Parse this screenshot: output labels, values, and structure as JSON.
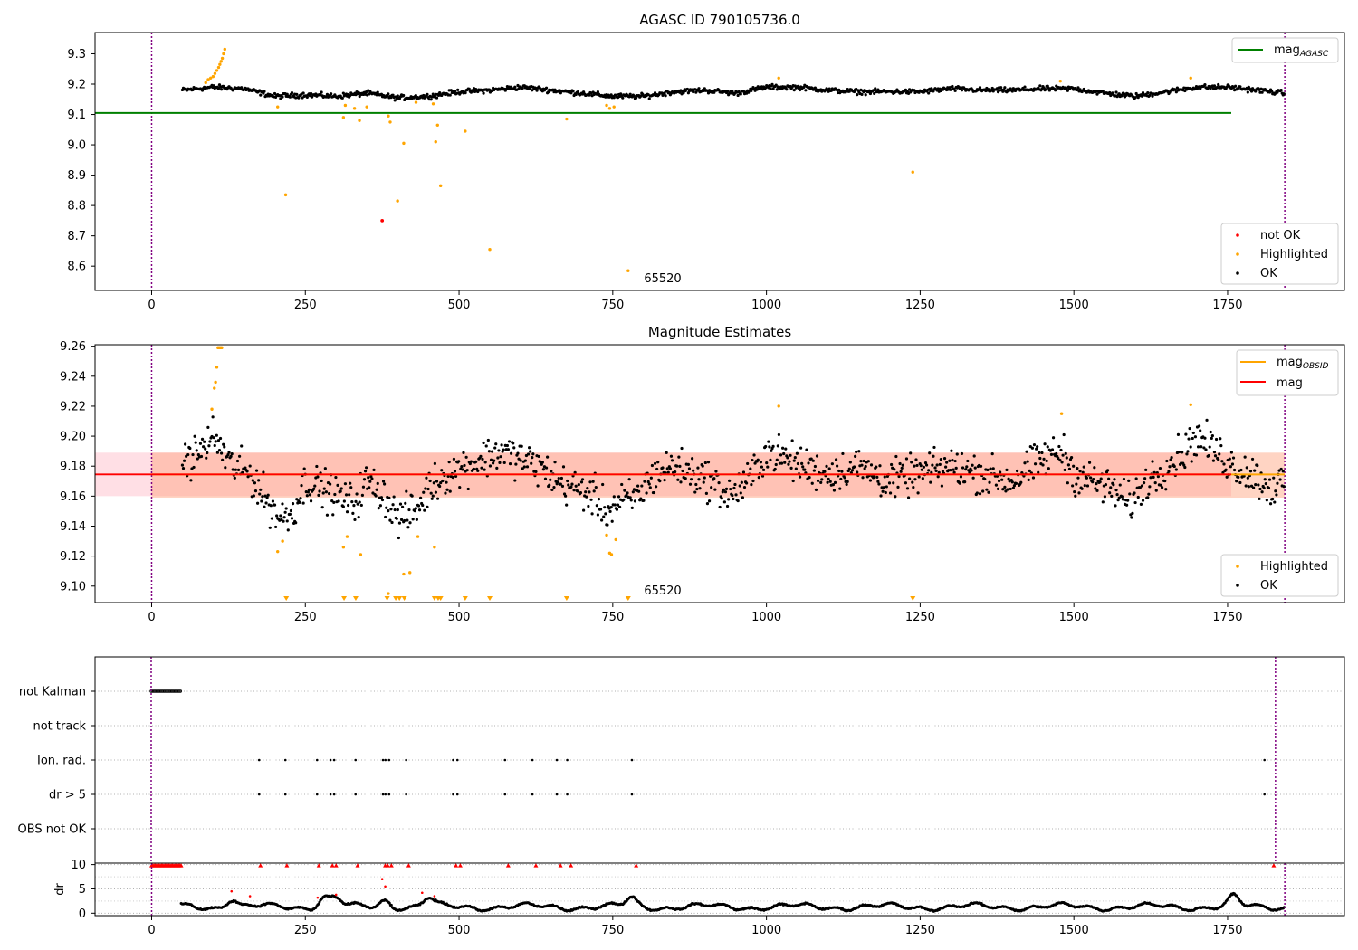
{
  "colors": {
    "ok": "#000000",
    "highlighted": "#ffa500",
    "not_ok": "#ff0000",
    "agasc_line": "#008000",
    "mag_line": "#ff0000",
    "obsid_line": "#ffa500",
    "band_mag": "#ffc0cb",
    "band_obsid": "#ffa07a",
    "vline": "#800080",
    "grid": "#b0b0b0"
  },
  "chart_data": [
    {
      "type": "scatter",
      "title": "AGASC ID 790105736.0",
      "xlabel": "",
      "ylabel": "",
      "xlim": [
        -92,
        1940
      ],
      "ylim": [
        8.52,
        9.37
      ],
      "xticks": [
        0,
        250,
        500,
        750,
        1000,
        1250,
        1500,
        1750,
        2000
      ],
      "yticks": [
        8.6,
        8.7,
        8.8,
        8.9,
        9.0,
        9.1,
        9.2,
        9.3
      ],
      "ytick_labels": [
        "8.6",
        "8.7",
        "8.8",
        "8.9",
        "9.0",
        "9.1",
        "9.2",
        "9.3"
      ],
      "vlines": [
        0,
        1843
      ],
      "obsid_label": {
        "text": "65520",
        "x": 920,
        "y": 8.55
      },
      "legend_lines": [
        {
          "label": "mag",
          "sub": "AGASC",
          "color_key": "agasc_line",
          "position": "top-right"
        }
      ],
      "legend_points": [
        {
          "label": "not OK",
          "color_key": "not_ok"
        },
        {
          "label": "Highlighted",
          "color_key": "highlighted"
        },
        {
          "label": "OK",
          "color_key": "ok"
        }
      ],
      "legend_points_position": "bottom-right",
      "hline": {
        "name": "mag_AGASC",
        "y": 9.105,
        "x0": -92,
        "x1": 1940
      },
      "ok_series": {
        "x_range": [
          50,
          1843
        ],
        "profile_x": [
          50,
          100,
          150,
          200,
          250,
          300,
          350,
          400,
          450,
          500,
          550,
          600,
          650,
          700,
          750,
          800,
          850,
          900,
          950,
          1000,
          1050,
          1100,
          1150,
          1200,
          1250,
          1300,
          1350,
          1400,
          1450,
          1500,
          1550,
          1600,
          1650,
          1700,
          1750,
          1800,
          1843
        ],
        "profile_y": [
          9.18,
          9.19,
          9.185,
          9.16,
          9.165,
          9.16,
          9.17,
          9.155,
          9.16,
          9.175,
          9.18,
          9.19,
          9.18,
          9.17,
          9.16,
          9.16,
          9.175,
          9.18,
          9.17,
          9.19,
          9.19,
          9.18,
          9.175,
          9.175,
          9.175,
          9.185,
          9.18,
          9.18,
          9.185,
          9.185,
          9.17,
          9.16,
          9.175,
          9.19,
          9.19,
          9.18,
          9.17
        ],
        "scatter": 0.007
      },
      "highlighted_points": [
        [
          88,
          9.205
        ],
        [
          92,
          9.215
        ],
        [
          96,
          9.22
        ],
        [
          100,
          9.225
        ],
        [
          103,
          9.235
        ],
        [
          106,
          9.245
        ],
        [
          109,
          9.255
        ],
        [
          111,
          9.265
        ],
        [
          113,
          9.275
        ],
        [
          115,
          9.285
        ],
        [
          117,
          9.3
        ],
        [
          119,
          9.315
        ],
        [
          205,
          9.125
        ],
        [
          218,
          8.835
        ],
        [
          312,
          9.09
        ],
        [
          315,
          9.13
        ],
        [
          330,
          9.12
        ],
        [
          338,
          9.08
        ],
        [
          350,
          9.125
        ],
        [
          385,
          9.095
        ],
        [
          388,
          9.075
        ],
        [
          400,
          8.815
        ],
        [
          410,
          9.005
        ],
        [
          430,
          9.14
        ],
        [
          458,
          9.135
        ],
        [
          462,
          9.01
        ],
        [
          465,
          9.065
        ],
        [
          470,
          8.865
        ],
        [
          510,
          9.045
        ],
        [
          550,
          8.655
        ],
        [
          675,
          9.085
        ],
        [
          740,
          9.13
        ],
        [
          745,
          9.12
        ],
        [
          752,
          9.125
        ],
        [
          775,
          8.585
        ],
        [
          1020,
          9.22
        ],
        [
          1238,
          8.91
        ],
        [
          1478,
          9.21
        ],
        [
          1690,
          9.22
        ]
      ],
      "not_ok_points": [
        [
          375,
          8.75
        ]
      ]
    },
    {
      "type": "scatter",
      "title": "Magnitude Estimates",
      "xlabel": "",
      "ylabel": "",
      "xlim": [
        -92,
        1940
      ],
      "ylim": [
        9.089,
        9.261
      ],
      "xticks": [
        0,
        250,
        500,
        750,
        1000,
        1250,
        1500,
        1750,
        2000
      ],
      "yticks": [
        9.1,
        9.12,
        9.14,
        9.16,
        9.18,
        9.2,
        9.22,
        9.24,
        9.26
      ],
      "ytick_labels": [
        "9.10",
        "9.12",
        "9.14",
        "9.16",
        "9.18",
        "9.20",
        "9.22",
        "9.24",
        "9.26"
      ],
      "vlines": [
        0,
        1843
      ],
      "obsid_label": {
        "text": "65520",
        "x": 920,
        "y": 9.095
      },
      "legend_lines": [
        {
          "label": "mag",
          "sub": "OBSID",
          "color_key": "obsid_line"
        },
        {
          "label": "mag",
          "sub": "",
          "color_key": "mag_line"
        }
      ],
      "legend_lines_position": "top-right",
      "legend_points": [
        {
          "label": "Highlighted",
          "color_key": "highlighted"
        },
        {
          "label": "OK",
          "color_key": "ok"
        }
      ],
      "legend_points_position": "bottom-right",
      "mag": {
        "y": 9.1745,
        "band": [
          9.16,
          9.189
        ],
        "x0": -92,
        "x1": 1940
      },
      "mag_obsid": {
        "y": 9.1745,
        "band": [
          9.159,
          9.189
        ],
        "x0": 0,
        "x1": 1843
      },
      "ok_series": {
        "x_range": [
          50,
          1843
        ],
        "profile_x": [
          50,
          80,
          100,
          130,
          160,
          190,
          210,
          230,
          250,
          280,
          300,
          330,
          350,
          380,
          400,
          430,
          450,
          480,
          510,
          540,
          570,
          600,
          630,
          660,
          690,
          720,
          740,
          760,
          790,
          820,
          850,
          880,
          910,
          940,
          970,
          1000,
          1030,
          1060,
          1100,
          1150,
          1200,
          1250,
          1300,
          1350,
          1400,
          1450,
          1480,
          1500,
          1530,
          1560,
          1590,
          1620,
          1650,
          1680,
          1700,
          1730,
          1760,
          1790,
          1820,
          1843
        ],
        "profile_y": [
          9.182,
          9.19,
          9.2,
          9.18,
          9.175,
          9.155,
          9.145,
          9.15,
          9.17,
          9.165,
          9.16,
          9.155,
          9.17,
          9.16,
          9.145,
          9.15,
          9.165,
          9.175,
          9.18,
          9.185,
          9.19,
          9.185,
          9.18,
          9.17,
          9.165,
          9.16,
          9.15,
          9.155,
          9.16,
          9.175,
          9.18,
          9.175,
          9.17,
          9.16,
          9.17,
          9.19,
          9.185,
          9.18,
          9.175,
          9.18,
          9.17,
          9.175,
          9.18,
          9.175,
          9.17,
          9.185,
          9.19,
          9.175,
          9.17,
          9.165,
          9.155,
          9.17,
          9.18,
          9.19,
          9.2,
          9.19,
          9.18,
          9.175,
          9.165,
          9.17
        ],
        "scatter": 0.011
      },
      "highlighted_points": [
        [
          98,
          9.218
        ],
        [
          102,
          9.232
        ],
        [
          104,
          9.236
        ],
        [
          106,
          9.246
        ],
        [
          108,
          9.259
        ],
        [
          110,
          9.259
        ],
        [
          112,
          9.259
        ],
        [
          114,
          9.259
        ],
        [
          205,
          9.123
        ],
        [
          213,
          9.13
        ],
        [
          312,
          9.126
        ],
        [
          318,
          9.133
        ],
        [
          340,
          9.121
        ],
        [
          385,
          9.095
        ],
        [
          410,
          9.108
        ],
        [
          420,
          9.109
        ],
        [
          433,
          9.133
        ],
        [
          460,
          9.126
        ],
        [
          740,
          9.134
        ],
        [
          745,
          9.122
        ],
        [
          748,
          9.121
        ],
        [
          755,
          9.131
        ],
        [
          1020,
          9.22
        ],
        [
          1480,
          9.215
        ],
        [
          1690,
          9.221
        ]
      ],
      "clipped_low_markers": [
        219,
        313,
        332,
        383,
        397,
        403,
        411,
        460,
        466,
        470,
        510,
        550,
        675,
        775,
        1238
      ]
    },
    {
      "type": "scatter",
      "title": "",
      "xlabel": "",
      "ylabel": "",
      "xlim": [
        -92,
        1956
      ],
      "ylim": [
        0,
        1
      ],
      "xticks": [],
      "categories": [
        "not Kalman",
        "not track",
        "Ion. rad.",
        "dr > 5",
        "OBS not OK"
      ],
      "vlines": [
        0,
        1843
      ],
      "flags": {
        "not Kalman": {
          "x_range": [
            0,
            48
          ],
          "step": 2
        },
        "not track": {
          "points": []
        },
        "Ion. rad.": {
          "points": [
            177,
            220,
            272,
            294,
            300,
            335,
            380,
            384,
            390,
            418,
            495,
            502,
            580,
            625,
            665,
            682,
            788,
            1825
          ]
        },
        "dr > 5": {
          "points": [
            177,
            220,
            272,
            294,
            300,
            335,
            380,
            384,
            390,
            418,
            495,
            502,
            580,
            625,
            665,
            682,
            788,
            1825
          ]
        },
        "OBS not OK": {
          "points": []
        }
      }
    },
    {
      "type": "scatter",
      "title": "",
      "xlabel": "",
      "ylabel": "dr",
      "xlim": [
        -92,
        1940
      ],
      "ylim": [
        -0.5,
        10.3
      ],
      "xticks": [
        0,
        250,
        500,
        750,
        1000,
        1250,
        1500,
        1750,
        2000
      ],
      "yticks": [
        0,
        5,
        10
      ],
      "ytick_labels": [
        "0",
        "5",
        "10"
      ],
      "vlines": [
        0,
        1843
      ],
      "capped_markers": {
        "y": 9.8,
        "x_range": [
          0,
          48
        ],
        "step": 2,
        "points": [
          177,
          220,
          272,
          294,
          300,
          335,
          380,
          384,
          390,
          418,
          495,
          502,
          580,
          625,
          665,
          682,
          788,
          1825
        ]
      },
      "red_points": [
        [
          130,
          4.5
        ],
        [
          160,
          3.5
        ],
        [
          270,
          3.2
        ],
        [
          300,
          3.8
        ],
        [
          375,
          7.0
        ],
        [
          380,
          5.5
        ],
        [
          440,
          4.2
        ],
        [
          460,
          3.5
        ]
      ],
      "ok_series": {
        "x_range": [
          48,
          1843
        ],
        "base": 1.3,
        "scatter": 0.8,
        "bumps": [
          [
            130,
            2.5
          ],
          [
            280,
            2.8
          ],
          [
            300,
            2.5
          ],
          [
            380,
            2.0
          ],
          [
            450,
            2.5
          ],
          [
            780,
            2.5
          ],
          [
            1760,
            2.8
          ]
        ]
      }
    }
  ]
}
